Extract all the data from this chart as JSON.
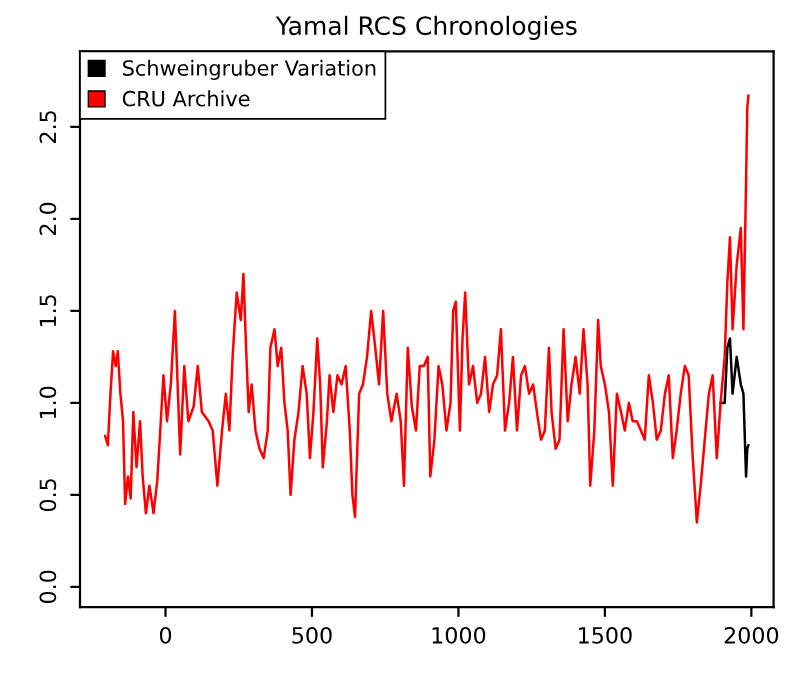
{
  "chart_data": {
    "type": "line",
    "title": "Yamal RCS Chronologies",
    "xlim": [
      -292,
      2076
    ],
    "xticks": [
      0,
      500,
      1000,
      1500,
      2000
    ],
    "ylim": [
      -0.11,
      2.91
    ],
    "yticks": [
      {
        "value": 0,
        "label": "0.0"
      },
      0.5,
      {
        "value": 1,
        "label": "1.0"
      },
      1.5,
      {
        "value": 2,
        "label": "2.0"
      },
      2.5
    ],
    "grid": false,
    "legend": "top left",
    "marker": "none",
    "line_style": "solid",
    "series": [
      {
        "name": "Schweingruber Variation",
        "color": "#000000",
        "x": [
          1895,
          1909,
          1918,
          1927,
          1936,
          1950,
          1964,
          1973,
          1982,
          1986,
          1990
        ],
        "values": [
          1.0,
          1.0,
          1.3,
          1.35,
          1.05,
          1.25,
          1.1,
          1.05,
          0.6,
          0.75,
          0.77
        ]
      },
      {
        "name": "CRU Archive",
        "color": "#ff0000",
        "x": [
          -206,
          -197,
          -188,
          -179,
          -170,
          -163,
          -154,
          -145,
          -138,
          -128,
          -119,
          -110,
          -99,
          -87,
          -78,
          -67,
          -55,
          -41,
          -28,
          -18,
          -7,
          5,
          18,
          32,
          39,
          50,
          64,
          78,
          96,
          110,
          124,
          147,
          161,
          177,
          193,
          206,
          218,
          229,
          243,
          257,
          266,
          275,
          284,
          294,
          307,
          321,
          335,
          349,
          358,
          372,
          383,
          395,
          406,
          417,
          427,
          440,
          454,
          468,
          482,
          493,
          505,
          518,
          528,
          537,
          551,
          560,
          573,
          587,
          601,
          615,
          629,
          638,
          647,
          661,
          674,
          688,
          702,
          716,
          729,
          743,
          757,
          771,
          789,
          803,
          814,
          827,
          841,
          855,
          868,
          882,
          895,
          904,
          918,
          932,
          945,
          959,
          973,
          982,
          991,
          1005,
          1014,
          1023,
          1036,
          1050,
          1064,
          1077,
          1091,
          1105,
          1118,
          1132,
          1145,
          1159,
          1173,
          1186,
          1200,
          1214,
          1227,
          1241,
          1255,
          1268,
          1282,
          1295,
          1309,
          1318,
          1332,
          1345,
          1359,
          1373,
          1386,
          1400,
          1414,
          1427,
          1441,
          1450,
          1464,
          1477,
          1486,
          1500,
          1514,
          1527,
          1541,
          1555,
          1568,
          1582,
          1595,
          1609,
          1623,
          1636,
          1650,
          1664,
          1677,
          1691,
          1705,
          1718,
          1732,
          1745,
          1759,
          1773,
          1786,
          1800,
          1814,
          1827,
          1841,
          1855,
          1868,
          1882,
          1895,
          1909,
          1918,
          1927,
          1936,
          1950,
          1964,
          1973,
          1982,
          1986,
          1990
        ],
        "values": [
          0.82,
          0.77,
          1.05,
          1.28,
          1.2,
          1.28,
          1.05,
          0.9,
          0.45,
          0.6,
          0.48,
          0.95,
          0.65,
          0.9,
          0.6,
          0.4,
          0.55,
          0.4,
          0.58,
          0.85,
          1.15,
          0.9,
          1.1,
          1.5,
          1.2,
          0.72,
          1.2,
          0.9,
          0.98,
          1.2,
          0.95,
          0.9,
          0.85,
          0.55,
          0.85,
          1.05,
          0.85,
          1.25,
          1.6,
          1.45,
          1.7,
          1.3,
          0.95,
          1.1,
          0.85,
          0.75,
          0.7,
          0.85,
          1.3,
          1.4,
          1.2,
          1.3,
          1.0,
          0.85,
          0.5,
          0.8,
          0.95,
          1.2,
          1.05,
          0.7,
          0.95,
          1.35,
          1.1,
          0.65,
          0.9,
          1.15,
          0.95,
          1.15,
          1.1,
          1.2,
          0.85,
          0.5,
          0.38,
          1.05,
          1.1,
          1.25,
          1.5,
          1.3,
          1.1,
          1.5,
          1.05,
          0.9,
          1.05,
          0.9,
          0.55,
          1.3,
          0.98,
          0.85,
          1.2,
          1.2,
          1.25,
          0.6,
          0.8,
          1.2,
          1.1,
          0.85,
          1.0,
          1.5,
          1.55,
          0.85,
          1.35,
          1.6,
          1.1,
          1.2,
          1.0,
          1.05,
          1.25,
          0.95,
          1.1,
          1.15,
          1.4,
          0.85,
          1.0,
          1.25,
          0.85,
          1.15,
          1.2,
          1.05,
          1.1,
          0.95,
          0.8,
          0.85,
          1.3,
          0.95,
          0.75,
          0.8,
          1.4,
          0.9,
          1.1,
          1.25,
          1.05,
          1.4,
          1.1,
          0.55,
          0.85,
          1.45,
          1.2,
          1.1,
          0.95,
          0.55,
          1.05,
          0.95,
          0.85,
          1.0,
          0.9,
          0.9,
          0.85,
          0.8,
          1.15,
          1.0,
          0.8,
          0.85,
          1.05,
          1.15,
          0.7,
          0.85,
          1.05,
          1.2,
          1.15,
          0.7,
          0.35,
          0.55,
          0.8,
          1.05,
          1.15,
          0.7,
          1.0,
          1.25,
          1.65,
          1.9,
          1.4,
          1.75,
          1.95,
          1.4,
          2.2,
          2.6,
          2.67
        ]
      }
    ]
  }
}
